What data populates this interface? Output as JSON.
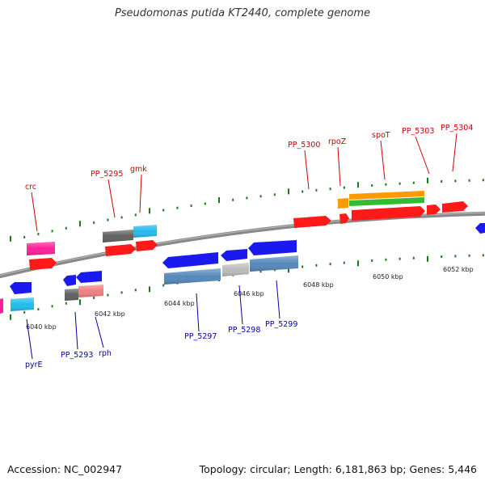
{
  "title": "Pseudomonas putida KT2440, complete genome",
  "footer": {
    "accession": "Accession: NC_002947",
    "topology": "Topology: circular; Length: 6,181,863 bp; Genes: 5,446"
  },
  "colors": {
    "backbone": "#888888",
    "tick": "#1a7a1a",
    "label_forward": "#cc0000",
    "label_reverse": "#0000aa",
    "red": "#ff1a1a",
    "blue": "#1a1aee",
    "magenta": "#ff1f99",
    "cyan": "#22bbee",
    "gray": "#606060",
    "salmon": "#ee8080",
    "steel": "#5588bb",
    "lightgray": "#bbbbbb",
    "orange": "#ff9900",
    "green": "#33bb33"
  },
  "scale_labels": [
    "6040 kbp",
    "6042 kbp",
    "6044 kbp",
    "6046 kbp",
    "6048 kbp",
    "6050 kbp",
    "6052 kbp"
  ],
  "gene_labels_forward": [
    "crc",
    "PP_5295",
    "gmk",
    "PP_5300",
    "rpoZ",
    "spoT",
    "PP_5303",
    "PP_5304"
  ],
  "gene_labels_reverse": [
    "pyrE",
    "PP_5293",
    "rph",
    "PP_5297",
    "PP_5298",
    "PP_5299"
  ]
}
